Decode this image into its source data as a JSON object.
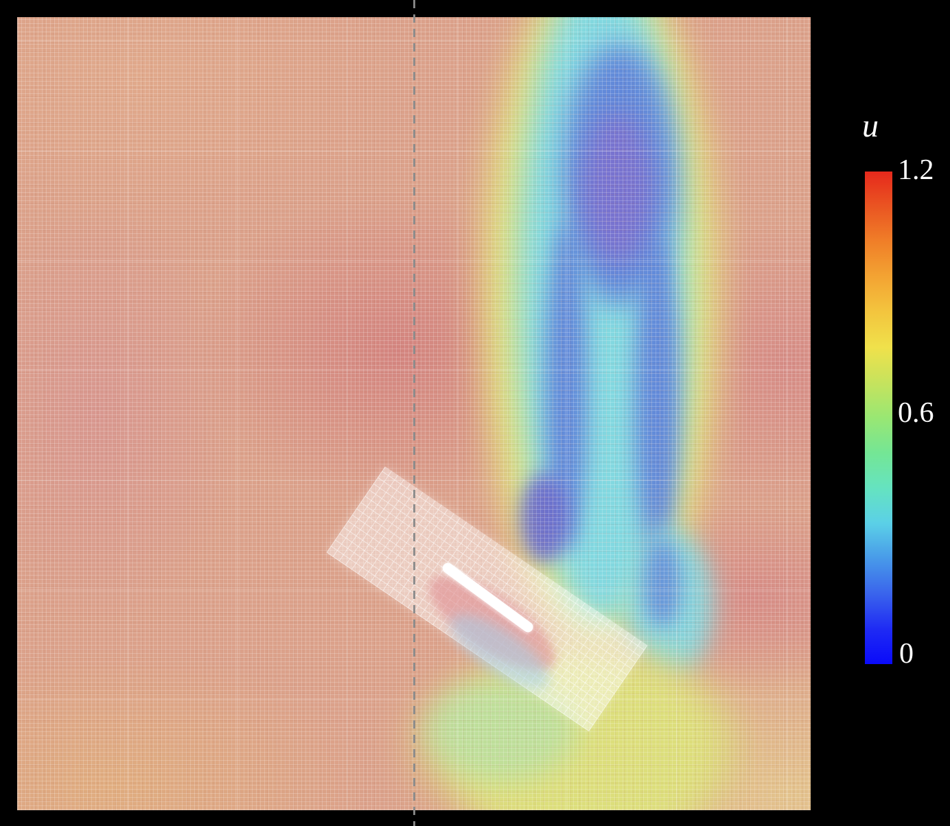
{
  "figure": {
    "description": "CFD simulation snapshot: heatmap of velocity magnitude u around an inclined flat plate, with vertical low-speed wake, rotated mesh-refinement window, dashed vertical probe line, and rainbow colorbar on black background",
    "palette": {
      "base": "#dba18a",
      "tint-top-left": "#e0a98b",
      "tint-pink-left": "#d8978f",
      "tint-red-center": "#d3847f",
      "tint-red-right": "#d68c86",
      "tint-tan-bl": "#e0ad7f",
      "tint-tan-br": "#e3c38c",
      "wake-yellow": "#e4e679",
      "wake-cyan": "#82d8e0",
      "wake-blue": "#5c7bd8",
      "wake-purple": "#7a72cf",
      "wake-purple-deep": "#6a68cc",
      "wake-khaki": "#d9c87e",
      "wake-bottom-yellow": "#dde07b",
      "wake-green": "#b9dfa0",
      "box-fill": "rgba(255,255,255,0.45)",
      "recirc-pink": "rgba(224,141,146,0.6)",
      "bubble-blue": "rgba(165,205,232,0.55)",
      "plate": "#ffffff",
      "probe": "#8a8a8a",
      "label": "#ffffff"
    },
    "colorbar": {
      "title": "u",
      "range_min": 0,
      "range_max": 1.2,
      "ticks": [
        {
          "label": "1.2",
          "value": 1.2
        },
        {
          "label": "0.6",
          "value": 0.6
        },
        {
          "label": "0",
          "value": 0
        }
      ],
      "stops_top_to_bottom": [
        "#e6291c",
        "#ea5522",
        "#f07f28",
        "#f3a433",
        "#f3c53e",
        "#f0e14b",
        "#c6e35d",
        "#99e773",
        "#74e695",
        "#65e3c0",
        "#5bd0e7",
        "#489ae9",
        "#3a64ec",
        "#1f2bf4",
        "#0a0afa"
      ]
    }
  },
  "chart_data": {
    "type": "heatmap",
    "title": "",
    "field_label": "u",
    "colorbar": {
      "label": "u",
      "range": [
        0,
        1.2
      ],
      "tick_values": [
        1.2,
        0.6,
        0
      ],
      "tick_labels": [
        "1.2",
        "0.6",
        "0"
      ],
      "colormap": "rainbow (red = 1.2 at top, blue = 0 at bottom)",
      "position": "right of plot"
    },
    "legend_position": "right",
    "grid": "fine computational mesh texture visible over entire square domain",
    "features": [
      "freestream region u ≈ 0.85–1.0 (salmon/orange) filling most of the square domain",
      "vertical low-speed wake plume (u ≈ 0.1–0.45, cyan with blue-purple cores) rising from the plate to the top boundary, centered at ≈ 74% of domain width",
      "wake minima: purple core near top (u ≈ 0.15), twin blue bands mid-height, deep blue pocket just above the plate",
      "yellow-green transition band (u ≈ 0.6–0.75) surrounding the wake and trailing below the plate to the bottom boundary",
      "white flat plate inclined ≈ 36° located at ≈ (56%, 73%) of the domain",
      "semi-transparent white rotated rectangle (≈ 34° tilt) marking a mesh-refinement zone around the plate, with pink recirculation streaks and a pale-blue separation bubble behind the plate",
      "gray dashed vertical probe/sampling line at ≈ 50% of domain width spanning the full image height"
    ]
  }
}
